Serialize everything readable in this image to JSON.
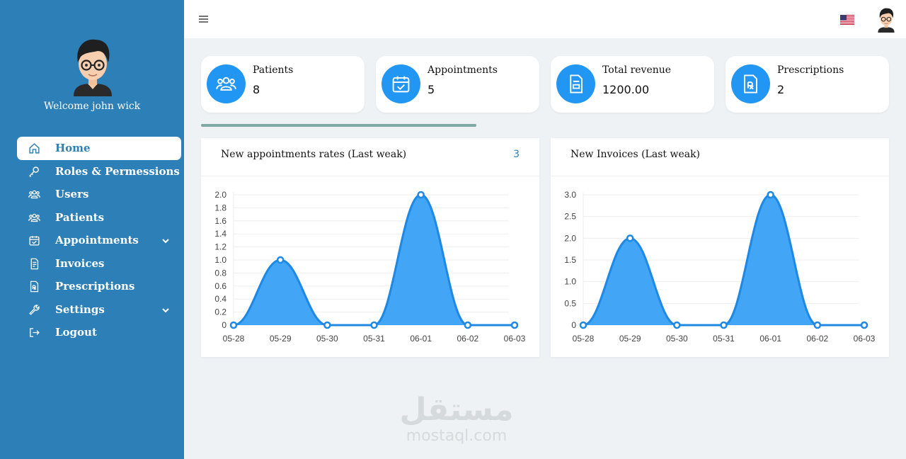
{
  "sidebar": {
    "welcome": "Welcome john wick",
    "items": [
      {
        "label": "Home",
        "icon": "home-icon"
      },
      {
        "label": "Roles & Permessions",
        "icon": "key-icon"
      },
      {
        "label": "Users",
        "icon": "users-icon"
      },
      {
        "label": "Patients",
        "icon": "users-icon"
      },
      {
        "label": "Appointments",
        "icon": "calendar-check-icon"
      },
      {
        "label": "Invoices",
        "icon": "invoice-icon"
      },
      {
        "label": "Prescriptions",
        "icon": "prescription-icon"
      },
      {
        "label": "Settings",
        "icon": "wrench-icon"
      },
      {
        "label": "Logout",
        "icon": "logout-icon"
      }
    ],
    "active": "Home"
  },
  "stats": [
    {
      "title": "Patients",
      "value": "8",
      "icon": "users-icon"
    },
    {
      "title": "Appointments",
      "value": "5",
      "icon": "calendar-check-icon"
    },
    {
      "title": "Total revenue",
      "value": "1200.00",
      "icon": "invoice-icon"
    },
    {
      "title": "Prescriptions",
      "value": "2",
      "icon": "prescription-icon"
    }
  ],
  "colors": {
    "sidebar": "#2d7fb8",
    "accent": "#2196f3",
    "chart_fill": "#42a5f5",
    "chart_line": "#1e88e5",
    "page_bg": "#eef2f5"
  },
  "panels": {
    "appointments": {
      "title": "New appointments rates (Last weak)",
      "count": "3"
    },
    "invoices": {
      "title": "New Invoices (Last weak)"
    }
  },
  "watermark": {
    "arabic": "مستقل",
    "latin": "mostaql.com"
  },
  "chart_data": [
    {
      "type": "area",
      "x": [
        "05-28",
        "05-29",
        "05-30",
        "05-31",
        "06-01",
        "06-02",
        "06-03"
      ],
      "series": [
        {
          "values": [
            0,
            1,
            0,
            0,
            2,
            0,
            0
          ]
        }
      ],
      "yticks": [
        "0",
        "0.2",
        "0.4",
        "0.6",
        "0.8",
        "1.0",
        "1.2",
        "1.4",
        "1.6",
        "1.8",
        "2.0"
      ],
      "ylim": [
        0,
        2
      ],
      "grid": true
    },
    {
      "type": "area",
      "x": [
        "05-28",
        "05-29",
        "05-30",
        "05-31",
        "06-01",
        "06-02",
        "06-03"
      ],
      "series": [
        {
          "values": [
            0,
            2,
            0,
            0,
            3,
            0,
            0
          ]
        }
      ],
      "yticks": [
        "0",
        "0.5",
        "1.0",
        "1.5",
        "2.0",
        "2.5",
        "3.0"
      ],
      "ylim": [
        0,
        3
      ],
      "grid": true
    }
  ]
}
